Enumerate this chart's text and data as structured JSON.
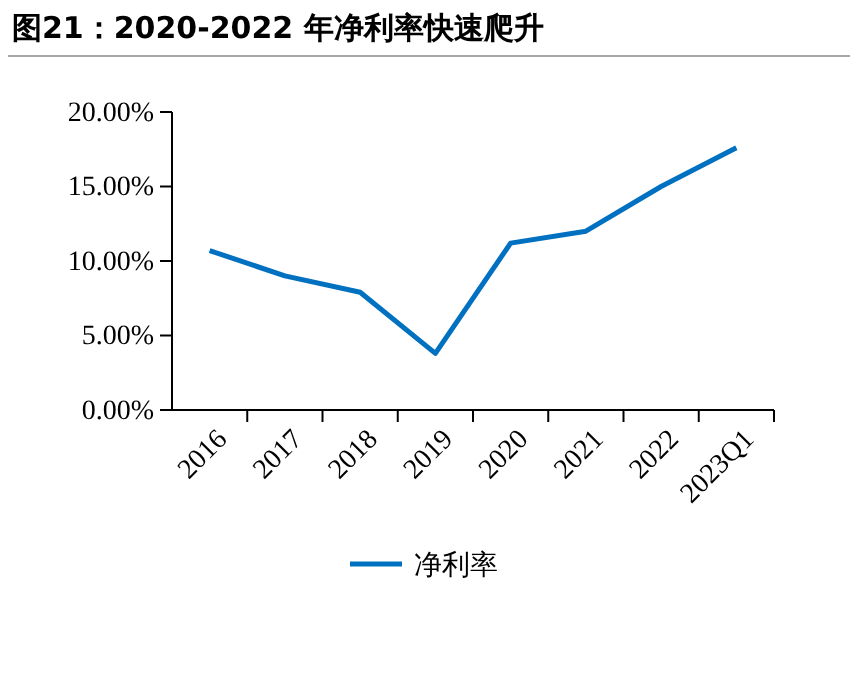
{
  "chart_data": {
    "type": "line",
    "title": "图21：2020-2022 年净利率快速爬升",
    "categories": [
      "2016",
      "2017",
      "2018",
      "2019",
      "2020",
      "2021",
      "2022",
      "2023Q1"
    ],
    "series": [
      {
        "name": "净利率",
        "color": "#0070c0",
        "values": [
          10.7,
          9.0,
          7.9,
          3.8,
          11.2,
          12.0,
          15.0,
          17.6
        ]
      }
    ],
    "ylim": [
      0,
      20
    ],
    "yticks": [
      {
        "value": 0,
        "label": "0.00%"
      },
      {
        "value": 5,
        "label": "5.00%"
      },
      {
        "value": 10,
        "label": "10.00%"
      },
      {
        "value": 15,
        "label": "15.00%"
      },
      {
        "value": 20,
        "label": "20.00%"
      }
    ],
    "grid": false,
    "legend": "bottom",
    "marker": "none",
    "line_style": "solid"
  }
}
